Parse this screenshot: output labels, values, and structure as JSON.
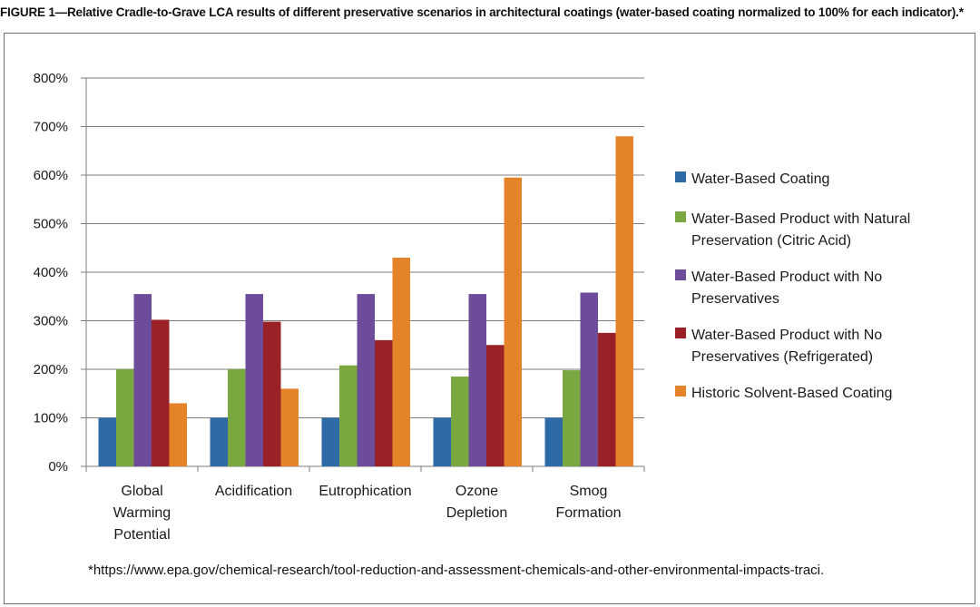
{
  "figure": {
    "caption": "FIGURE 1—Relative Cradle-to-Grave LCA results of different preservative scenarios in architectural coatings (water-based coating normalized to 100% for each indicator).*",
    "footnote": "*https://www.epa.gov/chemical-research/tool-reduction-and-assessment-chemicals-and-other-environmental-impacts-traci."
  },
  "chart_data": {
    "type": "bar",
    "title": "",
    "xlabel": "",
    "ylabel": "",
    "ylim": [
      0,
      800
    ],
    "yticks": [
      0,
      100,
      200,
      300,
      400,
      500,
      600,
      700,
      800
    ],
    "ytick_labels": [
      "0%",
      "100%",
      "200%",
      "300%",
      "400%",
      "500%",
      "600%",
      "700%",
      "800%"
    ],
    "grid": "horizontal",
    "legend_position": "right",
    "categories": [
      [
        "Global",
        "Warming",
        "Potential"
      ],
      [
        "Acidification"
      ],
      [
        "Eutrophication"
      ],
      [
        "Ozone",
        "Depletion"
      ],
      [
        "Smog",
        "Formation"
      ]
    ],
    "series": [
      {
        "name": "Water-Based Coating",
        "legend_lines": [
          "Water-Based Coating"
        ],
        "color": "#2e6aa6",
        "values": [
          100,
          100,
          100,
          100,
          100
        ]
      },
      {
        "name": "Water-Based Product with Natural Preservation (Citric Acid)",
        "legend_lines": [
          "Water-Based Product with Natural",
          "Preservation (Citric Acid)"
        ],
        "color": "#7aa73f",
        "values": [
          200,
          200,
          208,
          185,
          198
        ]
      },
      {
        "name": "Water-Based Product with No Preservatives",
        "legend_lines": [
          "Water-Based Product with No",
          "Preservatives"
        ],
        "color": "#6d4d99",
        "values": [
          355,
          355,
          355,
          355,
          358
        ]
      },
      {
        "name": "Water-Based Product with No Preservatives (Refrigerated)",
        "legend_lines": [
          "Water-Based Product with No",
          "Preservatives (Refrigerated)"
        ],
        "color": "#9a2126",
        "values": [
          302,
          298,
          260,
          250,
          275
        ]
      },
      {
        "name": "Historic Solvent-Based Coating",
        "legend_lines": [
          "Historic Solvent-Based Coating"
        ],
        "color": "#e5832b",
        "values": [
          130,
          160,
          430,
          595,
          680
        ]
      }
    ]
  }
}
